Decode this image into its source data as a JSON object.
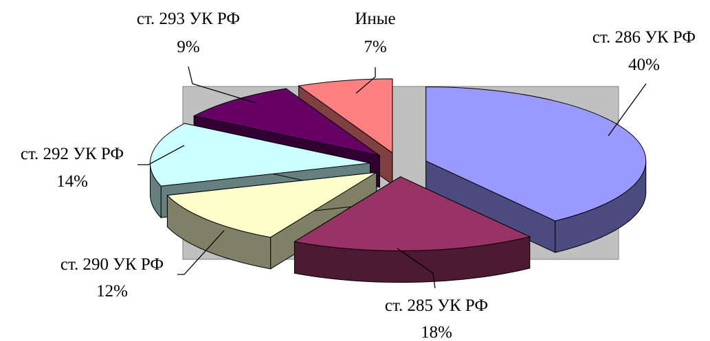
{
  "chart_data": {
    "type": "pie",
    "style": "3d-exploded",
    "background_color": "#C0C0C0",
    "slices": [
      {
        "label": "ст. 286 УК РФ",
        "value": 40,
        "value_label": "40%",
        "color": "#9999FF",
        "side_color": "#4B4B80"
      },
      {
        "label": "ст. 285 УК РФ",
        "value": 18,
        "value_label": "18%",
        "color": "#993366",
        "side_color": "#4D1A33"
      },
      {
        "label": "ст. 290 УК РФ",
        "value": 12,
        "value_label": "12%",
        "color": "#FFFFCC",
        "side_color": "#808066"
      },
      {
        "label": "ст. 292 УК РФ",
        "value": 14,
        "value_label": "14%",
        "color": "#CCFFFF",
        "side_color": "#668080"
      },
      {
        "label": "ст. 293 УК РФ",
        "value": 9,
        "value_label": "9%",
        "color": "#660066",
        "side_color": "#330033"
      },
      {
        "label": "Иные",
        "value": 7,
        "value_label": "7%",
        "color": "#FF8080",
        "side_color": "#804040"
      }
    ]
  }
}
